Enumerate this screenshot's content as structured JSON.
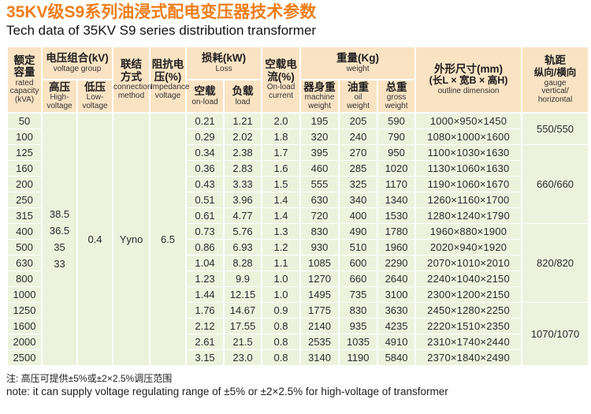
{
  "page": {
    "title": "35KV级S9系列油浸式配电变压器技术参数",
    "subtitle": "Tech data of 35KV S9 series distribution transformer",
    "note_cn": "注: 高压可提供±5%或±2×2.5%调压范围",
    "note_en": "note: it can supply voltage regulating range of ±5% or ±2×2.5% for high-voltage of transformer"
  },
  "colors": {
    "title_orange": "#ee7d18",
    "header_bg": "#f9e3c3",
    "body_bg": "#edf2dd",
    "grid": "#ffffff",
    "text": "#2b2b2b"
  },
  "table": {
    "header": {
      "capacity_cn": "额定\n容量",
      "capacity_en": "rated\ncapacity\n(kVA)",
      "vg_cn": "电压组合(kV)",
      "vg_en": "voltage group",
      "hv_cn": "高压",
      "hv_en": "High-\nvoltage",
      "lv_cn": "低压",
      "lv_en": "Low-\nvoltage",
      "conn_cn": "联结\n方式",
      "conn_en": "connection\nmethod",
      "imp_cn": "阻抗电\n压(%)",
      "imp_en": "Impedance\nvoltage",
      "loss_cn": "损耗(kW)",
      "loss_en": "Loss",
      "noload_cn": "空载",
      "noload_en": "on-load",
      "load_cn": "负载",
      "load_en": "load",
      "cur_cn": "空载电\n流(%)",
      "cur_en": "On-load\ncurrent",
      "wt_cn": "重量(Kg)",
      "wt_en": "weight",
      "machine_cn": "器身重",
      "machine_en": "machine\nweight",
      "oil_cn": "油重",
      "oil_en": "oil\nweight",
      "gross_cn": "总重",
      "gross_en": "gross\nweight",
      "dim_cn": "外形尺寸(mm)",
      "dim_cn2": "(长L × 宽B × 高H)",
      "dim_en": "outline dimension",
      "gauge_cn": "轨距",
      "gauge_cn2": "纵向/横向",
      "gauge_en": "gauge\nvertical/\nhorizontal"
    },
    "merged": {
      "hv_values": [
        "38.5",
        "36.5",
        "35",
        "33"
      ],
      "lv": "0.4",
      "connection": "Yyno",
      "impedance": "6.5"
    },
    "gauge_groups": [
      {
        "label": "550/550",
        "span": 2
      },
      {
        "label": "660/660",
        "span": 5
      },
      {
        "label": "820/820",
        "span": 5
      },
      {
        "label": "1070/1070",
        "span": 4
      }
    ],
    "rows": [
      {
        "kva": "50",
        "noload": "0.21",
        "load": "1.21",
        "current": "2.0",
        "machine": "195",
        "oil": "205",
        "gross": "590",
        "dim": "1000×950×1450"
      },
      {
        "kva": "100",
        "noload": "0.29",
        "load": "2.02",
        "current": "1.8",
        "machine": "320",
        "oil": "240",
        "gross": "790",
        "dim": "1080×1000×1600"
      },
      {
        "kva": "125",
        "noload": "0.34",
        "load": "2.38",
        "current": "1.7",
        "machine": "395",
        "oil": "270",
        "gross": "950",
        "dim": "1100×1030×1630"
      },
      {
        "kva": "160",
        "noload": "0.36",
        "load": "2.83",
        "current": "1.6",
        "machine": "460",
        "oil": "285",
        "gross": "1020",
        "dim": "1130×1060×1630"
      },
      {
        "kva": "200",
        "noload": "0.43",
        "load": "3.33",
        "current": "1.5",
        "machine": "555",
        "oil": "325",
        "gross": "1170",
        "dim": "1190×1060×1670"
      },
      {
        "kva": "250",
        "noload": "0.51",
        "load": "3.96",
        "current": "1.4",
        "machine": "630",
        "oil": "340",
        "gross": "1340",
        "dim": "1260×1160×1700"
      },
      {
        "kva": "315",
        "noload": "0.61",
        "load": "4.77",
        "current": "1.4",
        "machine": "720",
        "oil": "400",
        "gross": "1530",
        "dim": "1280×1240×1790"
      },
      {
        "kva": "400",
        "noload": "0.73",
        "load": "5.76",
        "current": "1.3",
        "machine": "830",
        "oil": "490",
        "gross": "1780",
        "dim": "1960×880×1900"
      },
      {
        "kva": "500",
        "noload": "0.86",
        "load": "6.93",
        "current": "1.2",
        "machine": "930",
        "oil": "510",
        "gross": "1960",
        "dim": "2020×940×1920"
      },
      {
        "kva": "630",
        "noload": "1.04",
        "load": "8.28",
        "current": "1.1",
        "machine": "1085",
        "oil": "600",
        "gross": "2290",
        "dim": "2070×1010×2010"
      },
      {
        "kva": "800",
        "noload": "1.23",
        "load": "9.9",
        "current": "1.0",
        "machine": "1270",
        "oil": "660",
        "gross": "2640",
        "dim": "2240×1040×2150"
      },
      {
        "kva": "1000",
        "noload": "1.44",
        "load": "12.15",
        "current": "1.0",
        "machine": "1495",
        "oil": "735",
        "gross": "3100",
        "dim": "2300×1200×2150"
      },
      {
        "kva": "1250",
        "noload": "1.76",
        "load": "14.67",
        "current": "0.9",
        "machine": "1775",
        "oil": "830",
        "gross": "3630",
        "dim": "2450×1280×2250"
      },
      {
        "kva": "1600",
        "noload": "2.12",
        "load": "17.55",
        "current": "0.8",
        "machine": "2140",
        "oil": "935",
        "gross": "4235",
        "dim": "2220×1510×2350"
      },
      {
        "kva": "2000",
        "noload": "2.61",
        "load": "21.5",
        "current": "0.8",
        "machine": "2535",
        "oil": "1035",
        "gross": "4910",
        "dim": "2310×1740×2440"
      },
      {
        "kva": "2500",
        "noload": "3.15",
        "load": "23.0",
        "current": "0.8",
        "machine": "3140",
        "oil": "1190",
        "gross": "5840",
        "dim": "2370×1840×2490"
      }
    ]
  }
}
